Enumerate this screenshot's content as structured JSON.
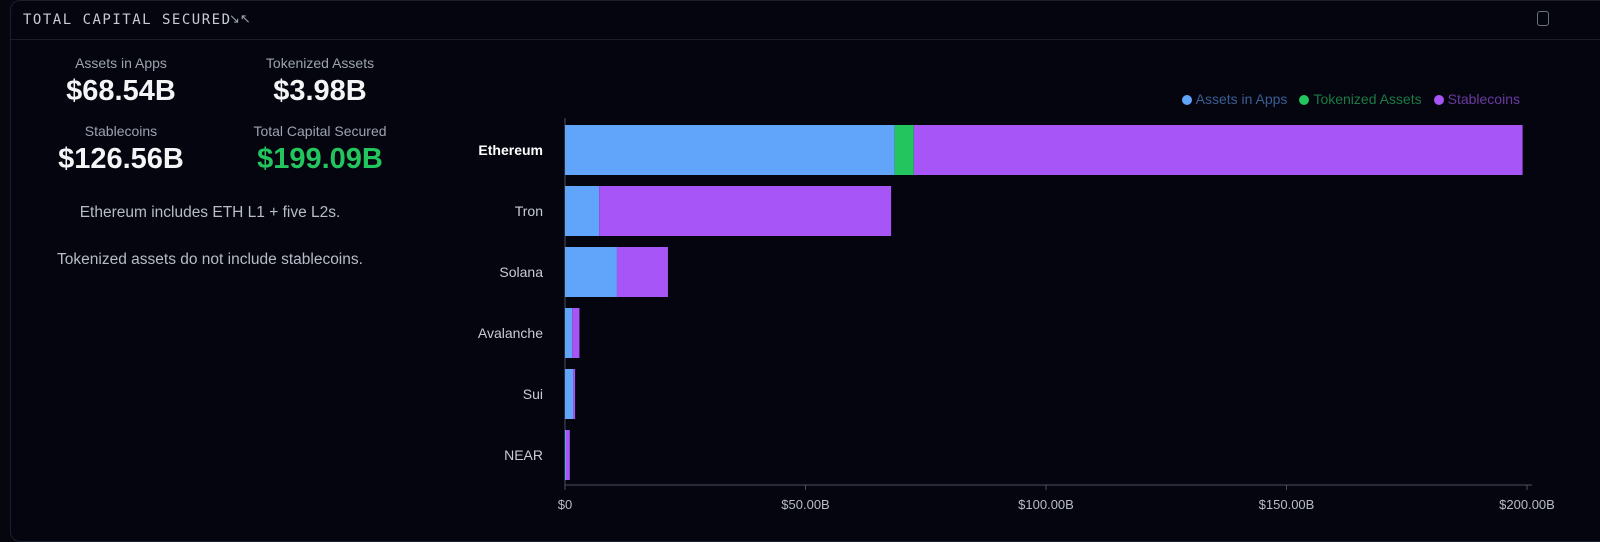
{
  "header": {
    "title": "TOTAL CAPITAL SECURED",
    "collapse_icon": "collapse-arrows-icon",
    "copy_icon": "copy-icon"
  },
  "stats": [
    {
      "label": "Assets in Apps",
      "value": "$68.54B",
      "color": "#f3f4f6"
    },
    {
      "label": "Tokenized Assets",
      "value": "$3.98B",
      "color": "#f3f4f6"
    },
    {
      "label": "Stablecoins",
      "value": "$126.56B",
      "color": "#f3f4f6"
    },
    {
      "label": "Total Capital Secured",
      "value": "$199.09B",
      "color": "#22c55e"
    }
  ],
  "notes": [
    "Ethereum includes ETH L1 + five L2s.",
    "Tokenized assets do not include stablecoins."
  ],
  "chart_data": {
    "type": "bar",
    "orientation": "horizontal",
    "stacked": true,
    "categories": [
      "Ethereum",
      "Tron",
      "Solana",
      "Avalanche",
      "Sui",
      "NEAR"
    ],
    "series": [
      {
        "name": "Assets in Apps",
        "color": "#60a5fa",
        "values": [
          68.54,
          7.1,
          10.8,
          1.5,
          1.7,
          0.2
        ]
      },
      {
        "name": "Tokenized Assets",
        "color": "#22c55e",
        "values": [
          3.98,
          0,
          0,
          0,
          0,
          0
        ]
      },
      {
        "name": "Stablecoins",
        "color": "#a855f7",
        "values": [
          126.56,
          60.7,
          10.6,
          1.5,
          0.4,
          0.8
        ]
      }
    ],
    "xlim": [
      0,
      200
    ],
    "xticks": [
      0,
      50,
      100,
      150,
      200
    ],
    "xtick_labels": [
      "$0",
      "$50.00B",
      "$100.00B",
      "$150.00B",
      "$200.00B"
    ],
    "unit": "B USD",
    "legend": "top-right",
    "grid": false,
    "highlighted_category": "Ethereum"
  }
}
